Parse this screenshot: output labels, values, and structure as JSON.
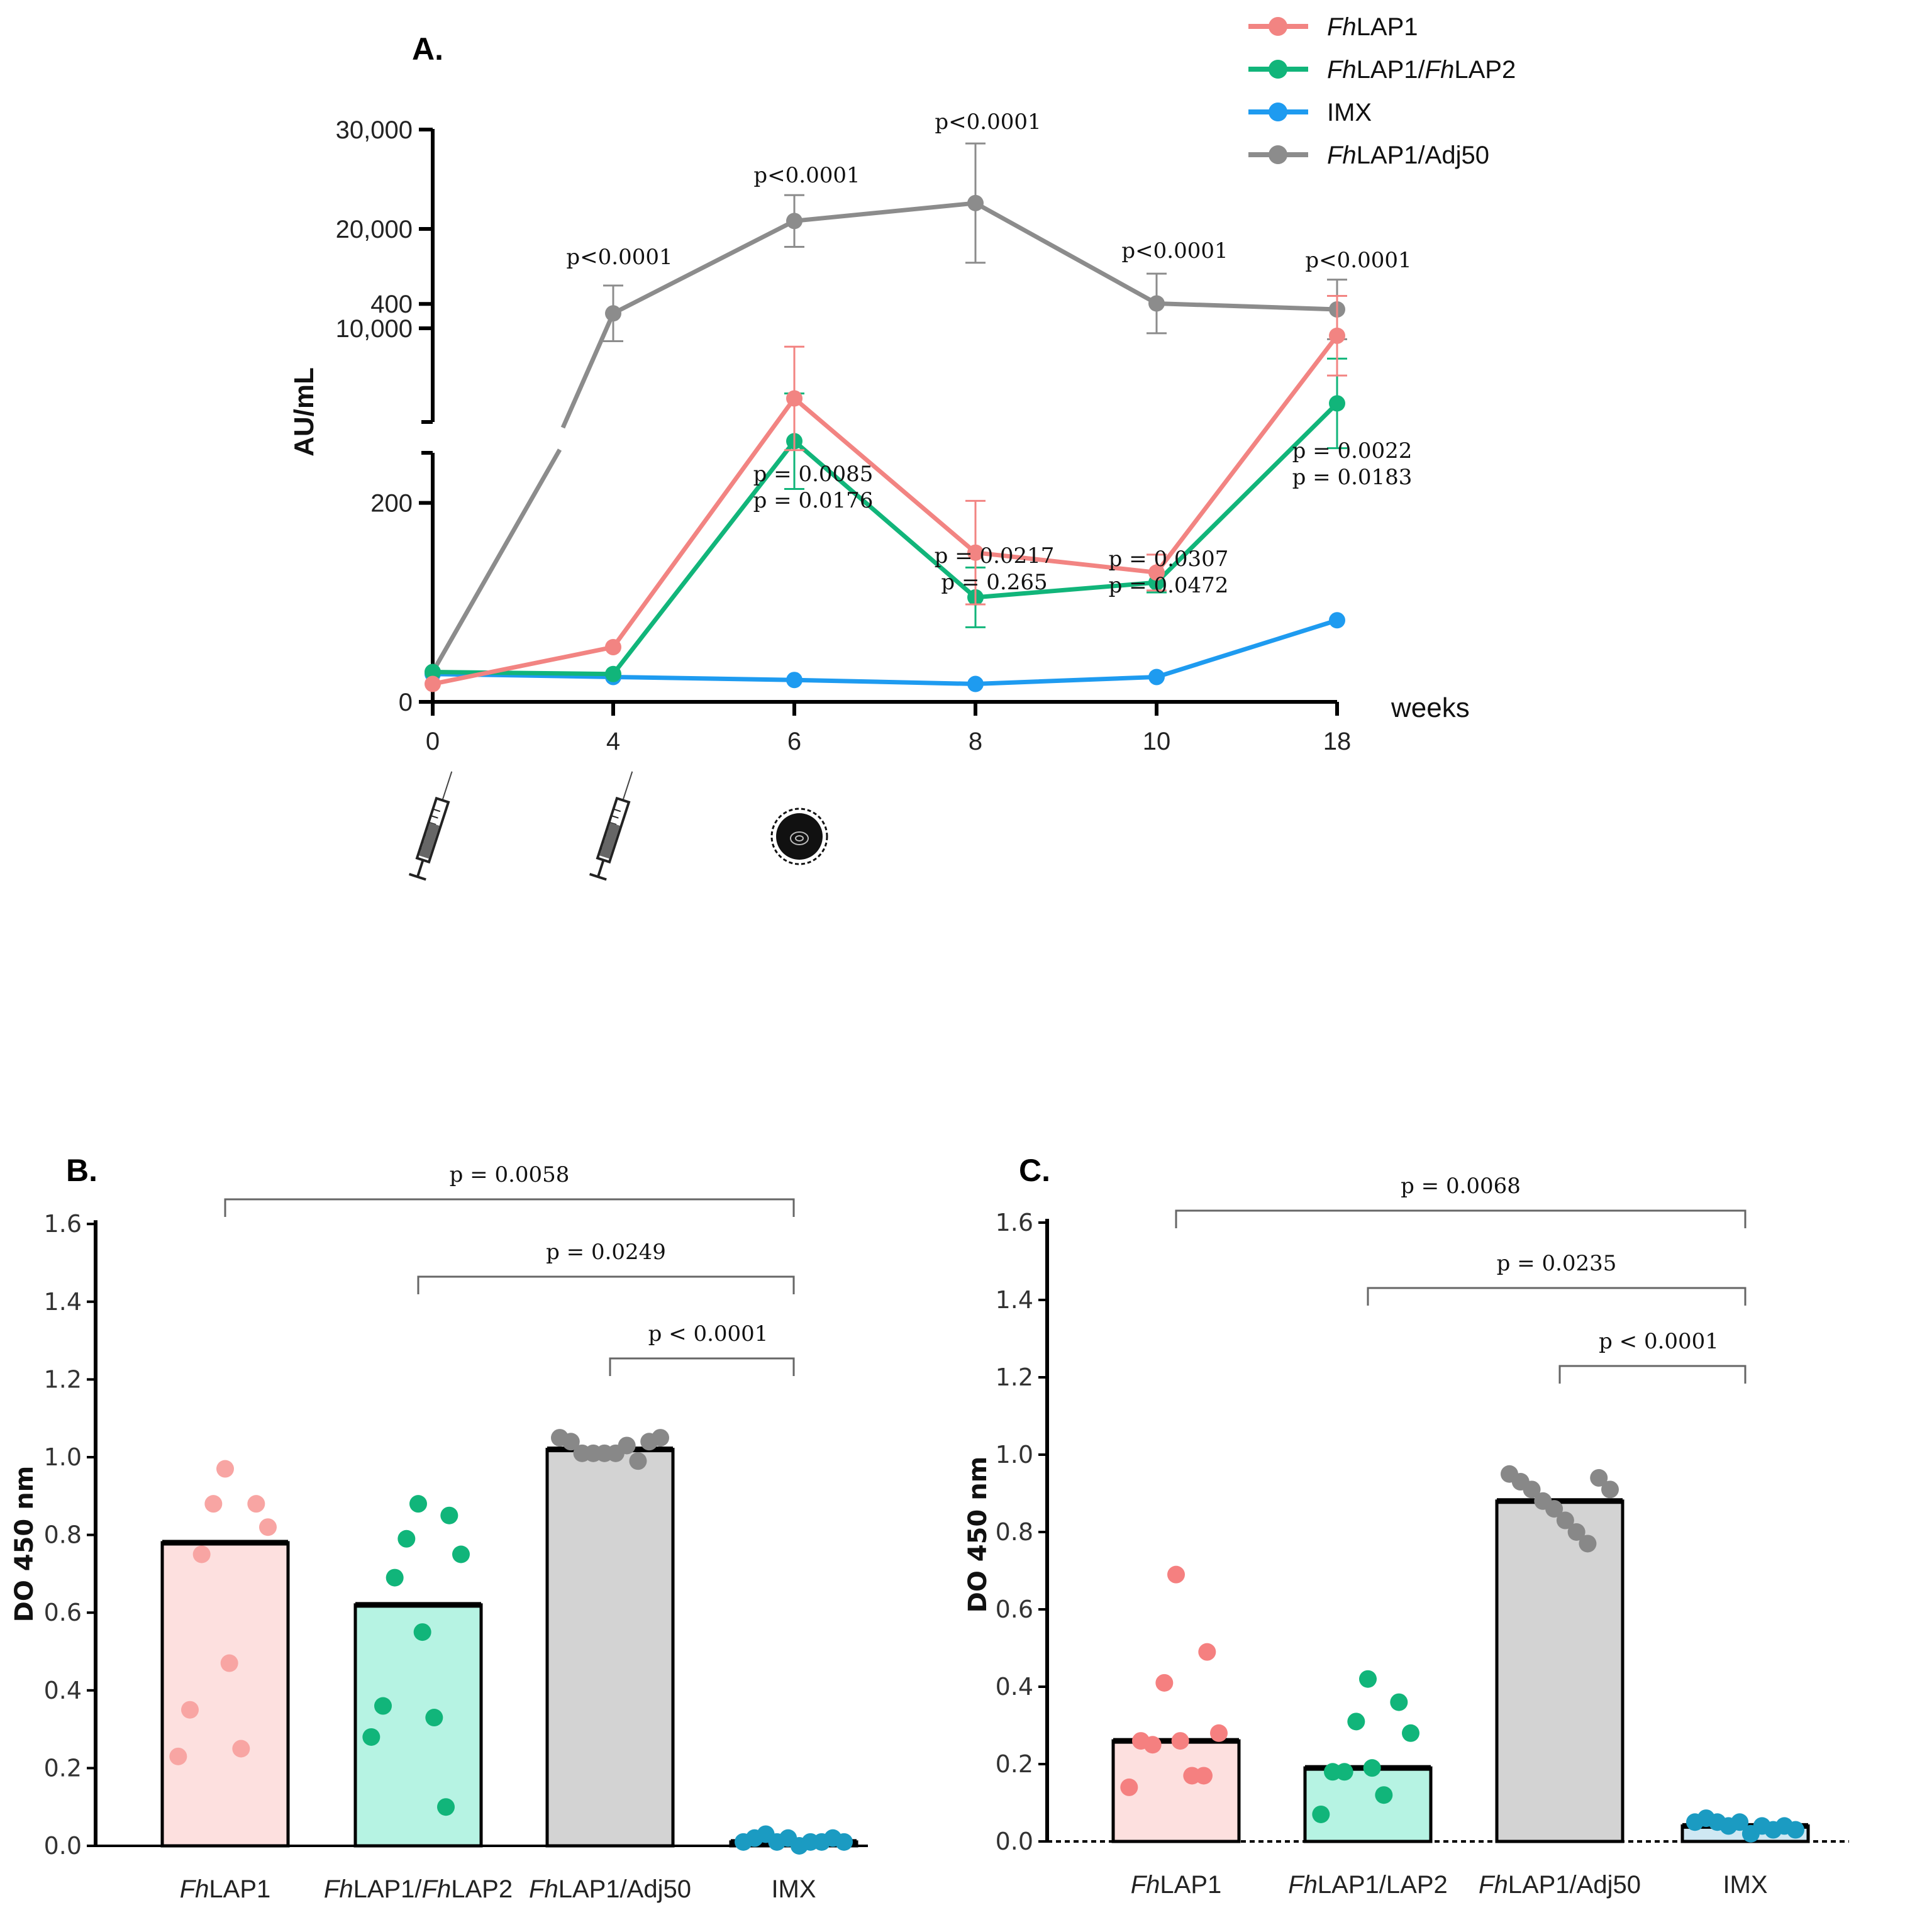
{
  "chart_data": [
    {
      "panel": "A.",
      "type": "line",
      "ylabel": "AU/mL",
      "xlabel": "weeks",
      "categories": [
        "0",
        "4",
        "6",
        "8",
        "10",
        "18"
      ],
      "y_ticks_lower": [
        "0",
        "200",
        "400"
      ],
      "y_ticks_upper": [
        "10,000",
        "20,000",
        "30,000"
      ],
      "ylim_lower": [
        0,
        500
      ],
      "ylim_upper": [
        0,
        30000
      ],
      "legend_position": "top-right",
      "legend": [
        {
          "prefix": "Fh",
          "text": "LAP1",
          "mid": "",
          "text2": "",
          "color": "#F28482"
        },
        {
          "prefix": "Fh",
          "text": "LAP1/",
          "mid": "Fh",
          "text2": "LAP2",
          "color": "#11B57A"
        },
        {
          "prefix": "",
          "text": "IMX",
          "mid": "",
          "text2": "",
          "color": "#1E9BF0"
        },
        {
          "prefix": "Fh",
          "text": "LAP1/Adj50",
          "mid": "",
          "text2": "",
          "color": "#8C8C8C"
        }
      ],
      "series": [
        {
          "name": "FhLAP1",
          "color": "#F28482",
          "values": [
            18,
            55,
            305,
            150,
            130,
            368
          ],
          "errors": [
            0,
            0,
            52,
            52,
            18,
            40
          ]
        },
        {
          "name": "FhLAP1/FhLAP2",
          "color": "#11B57A",
          "values": [
            30,
            28,
            262,
            105,
            120,
            300
          ],
          "errors": [
            0,
            0,
            48,
            30,
            10,
            45
          ]
        },
        {
          "name": "IMX",
          "color": "#1E9BF0",
          "values": [
            28,
            25,
            22,
            18,
            25,
            82
          ],
          "errors": [
            0,
            0,
            0,
            0,
            0,
            0
          ]
        },
        {
          "name": "FhLAP1/Adj50",
          "color": "#8C8C8C",
          "values": [
            30,
            11500,
            20800,
            22600,
            12500,
            11900
          ],
          "errors": [
            0,
            2800,
            2600,
            6000,
            3000,
            3000
          ]
        }
      ],
      "annotations": [
        {
          "x": "4",
          "lines": [
            "p<0.0001"
          ]
        },
        {
          "x": "6",
          "lines": [
            "p<0.0001"
          ]
        },
        {
          "x": "8",
          "lines": [
            "p<0.0001"
          ]
        },
        {
          "x": "10",
          "lines": [
            "p<0.0001"
          ]
        },
        {
          "x": "18",
          "lines": [
            "p<0.0001"
          ]
        },
        {
          "x": "6",
          "lines": [
            "p = 0.0085",
            "p = 0.0176"
          ]
        },
        {
          "x": "8",
          "lines": [
            "p = 0.0217",
            "p = 0.265"
          ]
        },
        {
          "x": "10",
          "lines": [
            "p = 0.0307",
            "p = 0.0472"
          ]
        },
        {
          "x": "18",
          "lines": [
            "p = 0.0022",
            "p = 0.0183"
          ]
        }
      ],
      "markers": [
        {
          "x": "0",
          "icon": "syringe-icon"
        },
        {
          "x": "4",
          "icon": "syringe-icon"
        },
        {
          "x": "6",
          "icon": "parasite-egg-icon"
        }
      ]
    },
    {
      "panel": "B.",
      "type": "bar",
      "ylabel": "DO 450 nm",
      "ylim": [
        0,
        1.6
      ],
      "y_ticks": [
        "0.0",
        "0.2",
        "0.4",
        "0.6",
        "0.8",
        "1.0",
        "1.2",
        "1.4",
        "1.6"
      ],
      "categories": [
        {
          "prefix": "Fh",
          "text": "LAP1",
          "mid": "",
          "text2": ""
        },
        {
          "prefix": "Fh",
          "text": "LAP1/",
          "mid": "Fh",
          "text2": "LAP2"
        },
        {
          "prefix": "Fh",
          "text": "LAP1/Adj50",
          "mid": "",
          "text2": ""
        },
        {
          "prefix": "",
          "text": "IMX",
          "mid": "",
          "text2": ""
        }
      ],
      "bar_values": [
        0.78,
        0.62,
        1.02,
        0.01
      ],
      "bar_colors": [
        "#FDE0DF",
        "#B6F3E3",
        "#D3D3D3",
        "#CFE8F3"
      ],
      "point_colors": [
        "#F8A5A3",
        "#11B57A",
        "#888888",
        "#1B9BC2"
      ],
      "points": [
        [
          0.97,
          0.88,
          0.88,
          0.82,
          0.75,
          0.47,
          0.35,
          0.25,
          0.23
        ],
        [
          0.88,
          0.85,
          0.79,
          0.75,
          0.69,
          0.55,
          0.36,
          0.33,
          0.28,
          0.1
        ],
        [
          1.05,
          1.04,
          1.01,
          1.01,
          1.01,
          1.01,
          1.03,
          0.99,
          1.04,
          1.05
        ],
        [
          0.01,
          0.02,
          0.03,
          0.01,
          0.02,
          0.0,
          0.01,
          0.01,
          0.02,
          0.01
        ]
      ],
      "comparisons": [
        {
          "from": 0,
          "to": 3,
          "label": "p = 0.0058"
        },
        {
          "from": 1,
          "to": 3,
          "label": "p = 0.0249"
        },
        {
          "from": 2,
          "to": 3,
          "label": "p <  0.0001"
        }
      ]
    },
    {
      "panel": "C.",
      "type": "bar",
      "ylabel": "DO 450 nm",
      "ylim": [
        0,
        1.6
      ],
      "y_ticks": [
        "0.0",
        "0.2",
        "0.4",
        "0.6",
        "0.8",
        "1.0",
        "1.2",
        "1.4",
        "1.6"
      ],
      "categories": [
        {
          "prefix": "Fh",
          "text": "LAP1",
          "mid": "",
          "text2": ""
        },
        {
          "prefix": "Fh",
          "text": "LAP1/LAP2",
          "mid": "",
          "text2": ""
        },
        {
          "prefix": "Fh",
          "text": "LAP1/Adj50",
          "mid": "",
          "text2": ""
        },
        {
          "prefix": "",
          "text": "IMX",
          "mid": "",
          "text2": ""
        }
      ],
      "bar_values": [
        0.26,
        0.19,
        0.88,
        0.04
      ],
      "bar_colors": [
        "#FDE0DF",
        "#B6F3E3",
        "#D3D3D3",
        "#CFE8F3"
      ],
      "point_colors": [
        "#F58080",
        "#11B57A",
        "#888888",
        "#1B9BC2"
      ],
      "points": [
        [
          0.69,
          0.49,
          0.41,
          0.28,
          0.25,
          0.26,
          0.26,
          0.17,
          0.14,
          0.17
        ],
        [
          0.42,
          0.36,
          0.31,
          0.28,
          0.18,
          0.19,
          0.18,
          0.12,
          0.07
        ],
        [
          0.95,
          0.93,
          0.91,
          0.88,
          0.86,
          0.83,
          0.8,
          0.77,
          0.94,
          0.91
        ],
        [
          0.05,
          0.06,
          0.05,
          0.04,
          0.05,
          0.02,
          0.04,
          0.03,
          0.04,
          0.03
        ]
      ],
      "comparisons": [
        {
          "from": 0,
          "to": 3,
          "label": "p = 0.0068"
        },
        {
          "from": 1,
          "to": 3,
          "label": "p = 0.0235"
        },
        {
          "from": 2,
          "to": 3,
          "label": "p < 0.0001"
        }
      ]
    }
  ]
}
